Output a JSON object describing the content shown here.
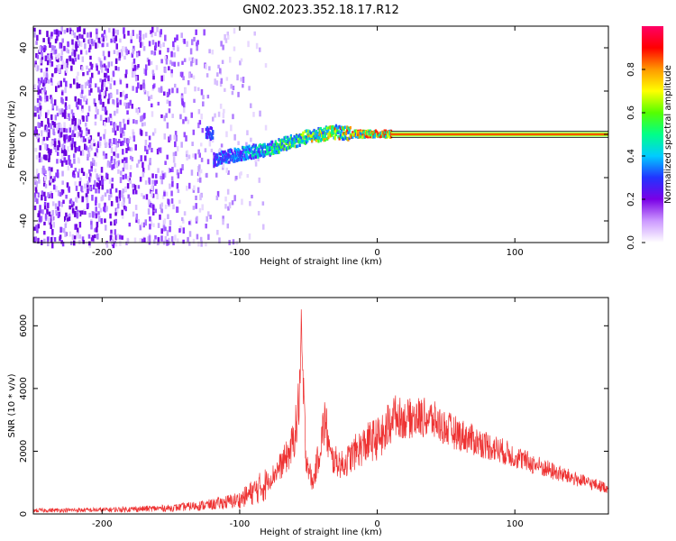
{
  "title": "GN02.2023.352.18.17.R12",
  "chart_data": [
    {
      "type": "heatmap",
      "xlabel": "Height of straight line (km)",
      "ylabel": "Frequency (Hz)",
      "xlim": [
        -250,
        168
      ],
      "ylim": [
        -50,
        50
      ],
      "xticks": [
        -200,
        -100,
        0,
        100
      ],
      "yticks": [
        -40,
        -20,
        0,
        20,
        40
      ],
      "colorbar": {
        "label": "Normalized spectral amplitude",
        "range": [
          0,
          1
        ],
        "ticks": [
          "0.0",
          "0.2",
          "0.4",
          "0.6",
          "0.8"
        ],
        "colormap": [
          "#ffffff",
          "#cc99ff",
          "#7a00e6",
          "#2233ff",
          "#00ccff",
          "#00ff88",
          "#55ff00",
          "#ffff00",
          "#ff9900",
          "#ff0000",
          "#ff0066"
        ]
      },
      "signal_track": [
        {
          "x": -120,
          "y": -12
        },
        {
          "x": -100,
          "y": -9
        },
        {
          "x": -90,
          "y": -8
        },
        {
          "x": -80,
          "y": -7
        },
        {
          "x": -70,
          "y": -5
        },
        {
          "x": -60,
          "y": -3
        },
        {
          "x": -50,
          "y": -1
        },
        {
          "x": -40,
          "y": 0
        },
        {
          "x": -30,
          "y": 1
        },
        {
          "x": -20,
          "y": 0
        },
        {
          "x": -10,
          "y": 0
        },
        {
          "x": 0,
          "y": 0
        },
        {
          "x": 10,
          "y": 0
        },
        {
          "x": 168,
          "y": 0
        }
      ]
    },
    {
      "type": "line",
      "xlabel": "Height of straight line (km)",
      "ylabel": "SNR (10 * v/v)",
      "xlim": [
        -250,
        168
      ],
      "ylim": [
        0,
        6900
      ],
      "xticks": [
        -200,
        -100,
        0,
        100
      ],
      "yticks": [
        0,
        2000,
        4000,
        6000
      ],
      "series": [
        {
          "color": "#ee3333",
          "envelope": [
            {
              "x": -250,
              "y": 150
            },
            {
              "x": -200,
              "y": 170
            },
            {
              "x": -150,
              "y": 250
            },
            {
              "x": -120,
              "y": 400
            },
            {
              "x": -100,
              "y": 600
            },
            {
              "x": -80,
              "y": 1300
            },
            {
              "x": -70,
              "y": 2000
            },
            {
              "x": -63,
              "y": 2600
            },
            {
              "x": -58,
              "y": 3800
            },
            {
              "x": -55,
              "y": 6800
            },
            {
              "x": -52,
              "y": 2500
            },
            {
              "x": -47,
              "y": 1200
            },
            {
              "x": -42,
              "y": 2600
            },
            {
              "x": -38,
              "y": 3900
            },
            {
              "x": -34,
              "y": 2300
            },
            {
              "x": -25,
              "y": 2000
            },
            {
              "x": -15,
              "y": 2600
            },
            {
              "x": -5,
              "y": 3000
            },
            {
              "x": 5,
              "y": 3200
            },
            {
              "x": 10,
              "y": 3900
            },
            {
              "x": 20,
              "y": 3650
            },
            {
              "x": 30,
              "y": 3750
            },
            {
              "x": 40,
              "y": 3650
            },
            {
              "x": 50,
              "y": 3300
            },
            {
              "x": 70,
              "y": 2850
            },
            {
              "x": 90,
              "y": 2450
            },
            {
              "x": 110,
              "y": 2000
            },
            {
              "x": 130,
              "y": 1600
            },
            {
              "x": 150,
              "y": 1250
            },
            {
              "x": 168,
              "y": 1000
            }
          ]
        }
      ]
    }
  ]
}
